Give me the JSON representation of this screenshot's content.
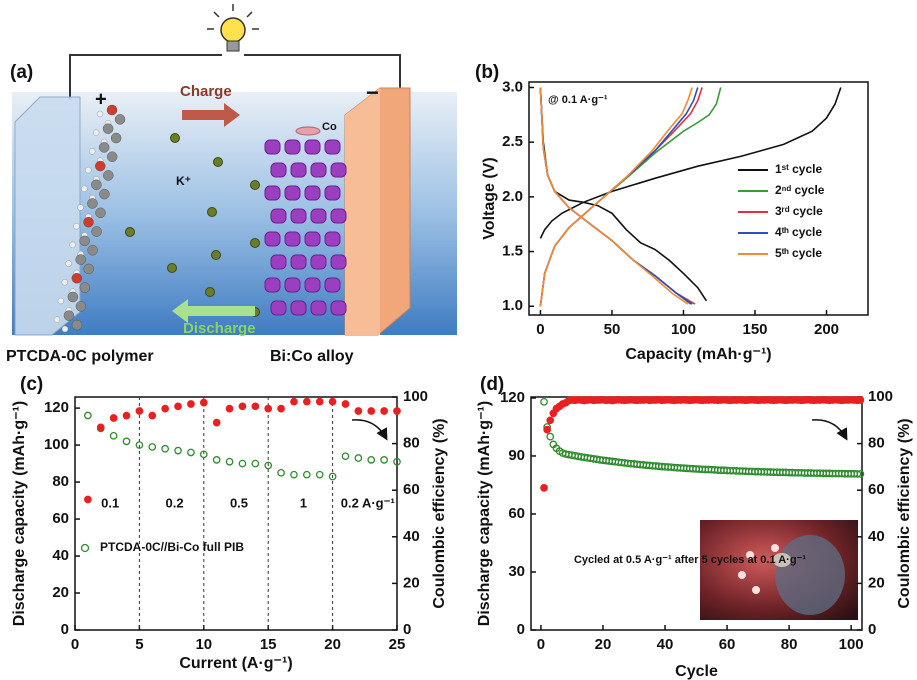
{
  "schematic": {
    "label": "(a)",
    "charge": "Charge",
    "discharge": "Discharge",
    "plus": "+",
    "minus": "−",
    "ion": "K⁺",
    "co": "Co",
    "left_caption": "PTCDA-0C polymer",
    "right_caption": "Bi:Co alloy"
  },
  "chart_data": [
    {
      "type": "line",
      "panel_label": "(b)",
      "x_label": "Capacity (mAh·g⁻¹)",
      "y_label": "Voltage (V)",
      "annotation": "@ 0.1 A·g⁻¹",
      "xlim": [
        -8,
        229
      ],
      "ylim": [
        0.92,
        3.05
      ],
      "xticks": [
        0,
        50,
        100,
        150,
        200
      ],
      "yticks": [
        {
          "value": 1.0,
          "label": "1.0"
        },
        {
          "value": 1.5,
          "label": "1.5"
        },
        {
          "value": 2.0,
          "label": "2.0"
        },
        {
          "value": 2.5,
          "label": "2.5"
        },
        {
          "value": 3.0,
          "label": "3.0"
        }
      ],
      "series": [
        {
          "name": "1ˢᵗ cycle",
          "color": "#111111",
          "x": [
            0,
            2,
            5,
            10,
            20,
            30,
            40,
            50,
            60,
            70,
            80,
            90,
            100,
            110,
            116,
            null,
            0,
            3,
            8,
            15,
            30,
            50,
            80,
            110,
            140,
            170,
            190,
            200,
            206,
            210
          ],
          "values": [
            3.0,
            2.5,
            2.2,
            2.05,
            1.97,
            1.95,
            1.92,
            1.85,
            1.7,
            1.58,
            1.52,
            1.42,
            1.3,
            1.17,
            1.05,
            null,
            1.62,
            1.7,
            1.78,
            1.85,
            1.95,
            2.05,
            2.17,
            2.28,
            2.37,
            2.48,
            2.6,
            2.72,
            2.85,
            3.0
          ]
        },
        {
          "name": "2ⁿᵈ cycle",
          "color": "#3a9a3a",
          "x": [
            0,
            2,
            5,
            10,
            20,
            35,
            50,
            65,
            80,
            95,
            105,
            null,
            0,
            3,
            10,
            20,
            40,
            60,
            80,
            100,
            110,
            118,
            123,
            126
          ],
          "values": [
            3.0,
            2.45,
            2.2,
            2.05,
            1.9,
            1.75,
            1.6,
            1.42,
            1.28,
            1.12,
            1.02,
            null,
            1.0,
            1.3,
            1.55,
            1.72,
            1.95,
            2.17,
            2.4,
            2.6,
            2.68,
            2.75,
            2.85,
            3.0
          ]
        },
        {
          "name": "3ʳᵈ cycle",
          "color": "#e0303a",
          "x": [
            0,
            2,
            5,
            10,
            20,
            35,
            50,
            65,
            80,
            95,
            108,
            null,
            0,
            3,
            10,
            20,
            40,
            60,
            80,
            95,
            105,
            110,
            113
          ],
          "values": [
            3.0,
            2.45,
            2.2,
            2.05,
            1.9,
            1.75,
            1.6,
            1.42,
            1.28,
            1.12,
            1.02,
            null,
            1.0,
            1.3,
            1.55,
            1.72,
            1.95,
            2.18,
            2.42,
            2.62,
            2.76,
            2.88,
            3.0
          ]
        },
        {
          "name": "4ᵗʰ cycle",
          "color": "#2b4fbf",
          "x": [
            0,
            2,
            5,
            10,
            20,
            35,
            50,
            65,
            80,
            95,
            106,
            null,
            0,
            3,
            10,
            20,
            40,
            60,
            80,
            93,
            102,
            107,
            110
          ],
          "values": [
            3.0,
            2.45,
            2.2,
            2.05,
            1.9,
            1.75,
            1.6,
            1.42,
            1.28,
            1.12,
            1.02,
            null,
            1.0,
            1.3,
            1.55,
            1.72,
            1.95,
            2.18,
            2.42,
            2.62,
            2.76,
            2.88,
            3.0
          ]
        },
        {
          "name": "5ᵗʰ cycle",
          "color": "#f28b30",
          "x": [
            0,
            2,
            5,
            10,
            20,
            35,
            50,
            65,
            78,
            92,
            103,
            null,
            0,
            3,
            10,
            20,
            40,
            60,
            78,
            90,
            99,
            103,
            106
          ],
          "values": [
            3.0,
            2.45,
            2.2,
            2.05,
            1.9,
            1.75,
            1.6,
            1.42,
            1.28,
            1.12,
            1.02,
            null,
            1.0,
            1.3,
            1.55,
            1.72,
            1.95,
            2.18,
            2.42,
            2.62,
            2.76,
            2.88,
            3.0
          ]
        }
      ]
    },
    {
      "type": "scatter",
      "panel_label": "(c)",
      "x_label": "Current (A·g⁻¹)",
      "y_label": "Discharge capacity (mAh·g⁻¹)",
      "y2_label": "Coulombic efficiency (%)",
      "xlim": [
        0,
        25
      ],
      "ylim": [
        0,
        126
      ],
      "y2lim": [
        0,
        100
      ],
      "xticks": [
        0,
        5,
        10,
        15,
        20,
        25
      ],
      "yticks": [
        0,
        20,
        40,
        60,
        80,
        100,
        120
      ],
      "y2ticks": [
        0,
        20,
        40,
        60,
        80,
        100
      ],
      "vlines": [
        5,
        10,
        15,
        20
      ],
      "segment_labels": [
        "0.1",
        "0.2",
        "0.5",
        "1",
        "0.2 A·g⁻¹"
      ],
      "x": [
        1,
        2,
        3,
        4,
        5,
        6,
        7,
        8,
        9,
        10,
        11,
        12,
        13,
        14,
        15,
        16,
        17,
        18,
        19,
        20,
        21,
        22,
        23,
        24,
        25
      ],
      "series": [
        {
          "name": "PTCDA-0C//Bi-Co full PIB",
          "color": "#2e8b2e",
          "marker": "open",
          "values": [
            116,
            109,
            105,
            102,
            100,
            99,
            98,
            97,
            96,
            95,
            92,
            91,
            90,
            90,
            89,
            85,
            84,
            84,
            84,
            83,
            94,
            93,
            92,
            92,
            91
          ]
        },
        {
          "color": "#e82020",
          "marker": "filled",
          "axis": "y2",
          "values": [
            56,
            87,
            91,
            92,
            94,
            92,
            95,
            96,
            97,
            97.6,
            89,
            95,
            96,
            96,
            95,
            95,
            98,
            98,
            98,
            98,
            97,
            94,
            94,
            94,
            94
          ]
        }
      ]
    },
    {
      "type": "scatter",
      "panel_label": "(d)",
      "x_label": "Cycle",
      "y_label": "Discharge capacity (mAh·g⁻¹)",
      "y2_label": "Coulombic efficiency (%)",
      "annotation": "Cycled at 0.5 A·g⁻¹ after 5 cycles at 0.1 A·g⁻¹",
      "xlim": [
        -3.2,
        103.5
      ],
      "ylim": [
        0,
        120.5
      ],
      "y2lim": [
        0,
        100
      ],
      "xticks": [
        0,
        20,
        40,
        60,
        80,
        100
      ],
      "yticks": [
        0,
        30,
        60,
        90,
        120
      ],
      "y2ticks": [
        0,
        20,
        40,
        60,
        80,
        100
      ],
      "x": [
        1,
        2,
        3,
        4,
        5,
        6,
        7,
        8,
        9,
        10,
        11,
        12,
        13,
        14,
        15,
        16,
        17,
        18,
        19,
        20,
        21,
        22,
        23,
        24,
        25,
        26,
        27,
        28,
        29,
        30,
        31,
        32,
        33,
        34,
        35,
        36,
        37,
        38,
        39,
        40,
        41,
        42,
        43,
        44,
        45,
        46,
        47,
        48,
        49,
        50,
        51,
        52,
        53,
        54,
        55,
        56,
        57,
        58,
        59,
        60,
        61,
        62,
        63,
        64,
        65,
        66,
        67,
        68,
        69,
        70,
        71,
        72,
        73,
        74,
        75,
        76,
        77,
        78,
        79,
        80,
        81,
        82,
        83,
        84,
        85,
        86,
        87,
        88,
        89,
        90,
        91,
        92,
        93,
        94,
        95,
        96,
        97,
        98,
        99,
        100,
        101,
        102,
        103
      ],
      "series": [
        {
          "color": "#2e8b2e",
          "marker": "open",
          "values": [
            118,
            105,
            100,
            96,
            94,
            92.5,
            91.5,
            91,
            90.7,
            90.4,
            90.1,
            89.8,
            89.5,
            89.3,
            89.0,
            88.8,
            88.5,
            88.3,
            88.0,
            87.8,
            87.6,
            87.4,
            87.2,
            87.0,
            86.8,
            86.6,
            86.4,
            86.2,
            86.0,
            85.9,
            85.7,
            85.5,
            85.4,
            85.2,
            85.1,
            84.9,
            84.8,
            84.7,
            84.5,
            84.4,
            84.3,
            84.2,
            84.0,
            83.9,
            83.8,
            83.7,
            83.6,
            83.5,
            83.4,
            83.3,
            83.2,
            83.1,
            83.0,
            83.0,
            82.9,
            82.8,
            82.7,
            82.6,
            82.6,
            82.5,
            82.4,
            82.4,
            82.3,
            82.2,
            82.2,
            82.1,
            82.0,
            82.0,
            81.9,
            81.9,
            81.8,
            81.8,
            81.7,
            81.7,
            81.6,
            81.6,
            81.5,
            81.5,
            81.5,
            81.4,
            81.4,
            81.3,
            81.3,
            81.3,
            81.2,
            81.2,
            81.2,
            81.1,
            81.1,
            81.1,
            81.0,
            81.0,
            81.0,
            80.9,
            80.9,
            80.9,
            80.9,
            80.8,
            80.8,
            80.8,
            80.8,
            80.7,
            80.7
          ]
        },
        {
          "color": "#e82020",
          "marker": "filled",
          "axis": "y2",
          "values": [
            61,
            86,
            90,
            93,
            95,
            96,
            97,
            97.5,
            98.5,
            98.7,
            98.6,
            98.8,
            98.7,
            98.5,
            98.7,
            98.8,
            98.6,
            98.7,
            98.7,
            98.8,
            98.6,
            98.7,
            98.5,
            98.7,
            98.8,
            98.7,
            98.6,
            98.7,
            98.8,
            98.7,
            98.6,
            98.7,
            98.7,
            98.8,
            98.6,
            98.7,
            98.7,
            98.8,
            98.6,
            98.7,
            98.8,
            98.7,
            98.6,
            98.7,
            98.7,
            98.8,
            98.7,
            98.6,
            98.7,
            98.8,
            98.7,
            98.6,
            98.7,
            98.7,
            98.8,
            98.7,
            98.6,
            98.7,
            98.8,
            98.7,
            98.6,
            98.7,
            98.7,
            98.8,
            98.7,
            98.6,
            98.7,
            98.8,
            98.7,
            98.6,
            98.7,
            98.7,
            98.8,
            98.7,
            98.6,
            98.7,
            98.8,
            98.7,
            98.6,
            98.7,
            98.7,
            98.8,
            98.7,
            98.6,
            98.7,
            98.8,
            98.7,
            98.6,
            98.7,
            98.7,
            98.8,
            98.7,
            98.6,
            98.7,
            98.8,
            98.7,
            98.6,
            98.7,
            98.7,
            98.8,
            98.7,
            98.6,
            98.7
          ]
        }
      ]
    }
  ]
}
